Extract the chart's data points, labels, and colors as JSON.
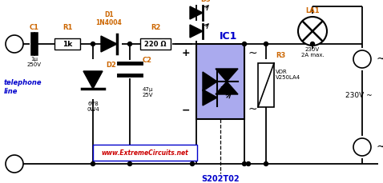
{
  "bg_color": "#ffffff",
  "wire_color": "#000000",
  "ic1_fill": "#aaaaee",
  "label_color": "#cc6600",
  "blue_label": "#0000cc",
  "red_text": "#cc0000",
  "website": "www.ExtremeCircuits.net",
  "s202t02": "S202T02",
  "telephone_line": "telephone\nline",
  "v230": "230V ~"
}
